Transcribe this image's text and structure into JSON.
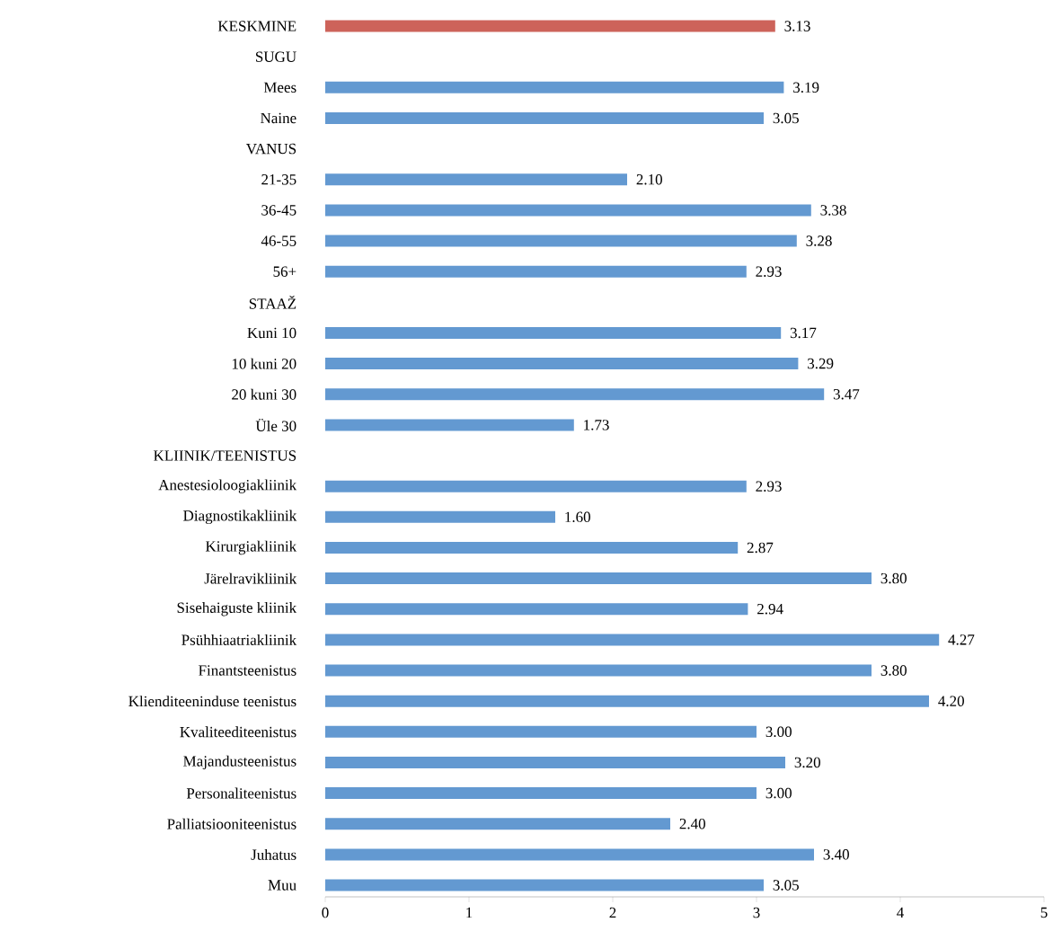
{
  "chart_data": {
    "type": "bar",
    "orientation": "horizontal",
    "categories": [
      "KESKMINE",
      "SUGU",
      "Mees",
      "Naine",
      "VANUS",
      "21-35",
      "36-45",
      "46-55",
      "56+",
      "STAAŽ",
      "Kuni 10",
      "10 kuni 20",
      "20 kuni 30",
      "Üle 30",
      "KLIINIK/TEENISTUS",
      "Anestesioloogiakliinik",
      "Diagnostikakliinik",
      "Kirurgiakliinik",
      "Järelravikliinik",
      "Sisehaiguste kliinik",
      "Psühhiaatriakliinik",
      "Finantsteenistus",
      "Klienditeeninduse teenistus",
      "Kvaliteediteenistus",
      "Majandusteenistus",
      "Personaliteenistus",
      "Palliatsiooniteenistus",
      "Juhatus",
      "Muu"
    ],
    "values": [
      3.13,
      null,
      3.19,
      3.05,
      null,
      2.1,
      3.38,
      3.28,
      2.93,
      null,
      3.17,
      3.29,
      3.47,
      1.73,
      null,
      2.93,
      1.6,
      2.87,
      3.8,
      2.94,
      4.27,
      3.8,
      4.2,
      3.0,
      3.2,
      3.0,
      2.4,
      3.4,
      3.05
    ],
    "value_labels": [
      "3.13",
      null,
      "3.19",
      "3.05",
      null,
      "2.10",
      "3.38",
      "3.28",
      "2.93",
      null,
      "3.17",
      "3.29",
      "3.47",
      "1.73",
      null,
      "2.93",
      "1.60",
      "2.87",
      "3.80",
      "2.94",
      "4.27",
      "3.80",
      "4.20",
      "3.00",
      "3.20",
      "3.00",
      "2.40",
      "3.40",
      "3.05"
    ],
    "colors": [
      "#cd635a",
      null,
      "#6399d1",
      "#6399d1",
      null,
      "#6399d1",
      "#6399d1",
      "#6399d1",
      "#6399d1",
      null,
      "#6399d1",
      "#6399d1",
      "#6399d1",
      "#6399d1",
      null,
      "#6399d1",
      "#6399d1",
      "#6399d1",
      "#6399d1",
      "#6399d1",
      "#6399d1",
      "#6399d1",
      "#6399d1",
      "#6399d1",
      "#6399d1",
      "#6399d1",
      "#6399d1",
      "#6399d1",
      "#6399d1"
    ],
    "xlim": [
      0,
      5
    ],
    "xticks": [
      0,
      1,
      2,
      3,
      4,
      5
    ]
  }
}
